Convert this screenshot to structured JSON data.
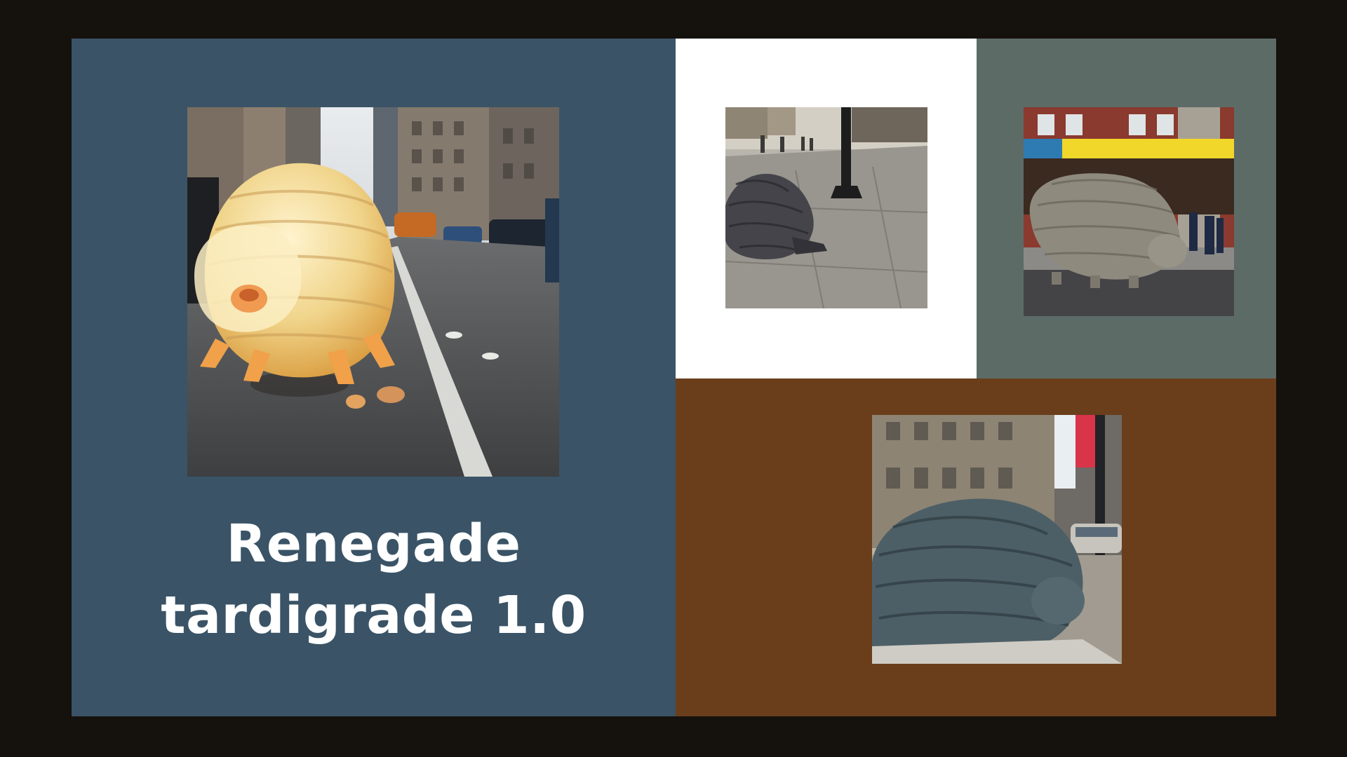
{
  "slide": {
    "title_line1": "Renegade",
    "title_line2": "tardigrade 1.0"
  },
  "panels": {
    "left_color": "#3a5366",
    "top_middle_color": "#ffffff",
    "top_right_color": "#5d6b67",
    "bottom_right_color": "#6a3e1b",
    "frame_color": "#15110d"
  },
  "images": [
    {
      "name": "pale-yellow-tardigrade-on-city-street"
    },
    {
      "name": "dark-tardigrade-on-sidewalk"
    },
    {
      "name": "gray-tardigrade-before-theater"
    },
    {
      "name": "blue-gray-tardigrade-statue-street"
    }
  ]
}
